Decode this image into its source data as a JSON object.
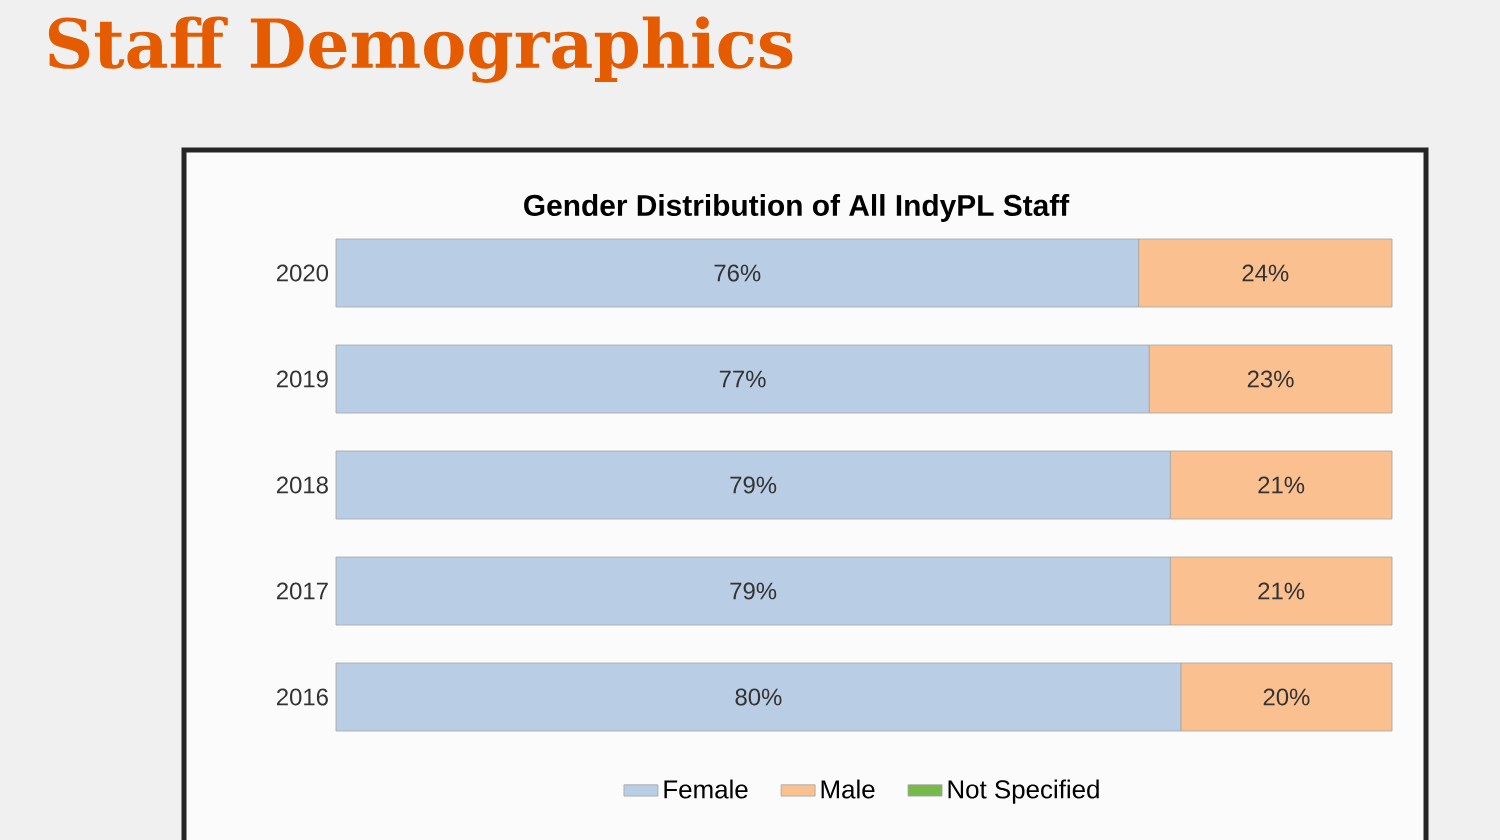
{
  "chart_data": {
    "type": "bar",
    "orientation": "horizontal",
    "stacked": true,
    "title": "Staff Demographics",
    "subtitle": "Gender Distribution of All IndyPL Staff",
    "categories": [
      "2020",
      "2019",
      "2018",
      "2017",
      "2016"
    ],
    "series": [
      {
        "name": "Female",
        "color": "#b9cde5",
        "values": [
          76,
          77,
          79,
          79,
          80
        ],
        "value_labels": [
          "76%",
          "77%",
          "79%",
          "79%",
          "80%"
        ]
      },
      {
        "name": "Male",
        "color": "#fac090",
        "values": [
          24,
          23,
          21,
          21,
          20
        ],
        "value_labels": [
          "24%",
          "23%",
          "21%",
          "21%",
          "20%"
        ]
      },
      {
        "name": "Not Specified",
        "color": "#77b94a",
        "values": [
          null,
          null,
          null,
          null,
          null
        ]
      }
    ],
    "legend": "bottom"
  }
}
